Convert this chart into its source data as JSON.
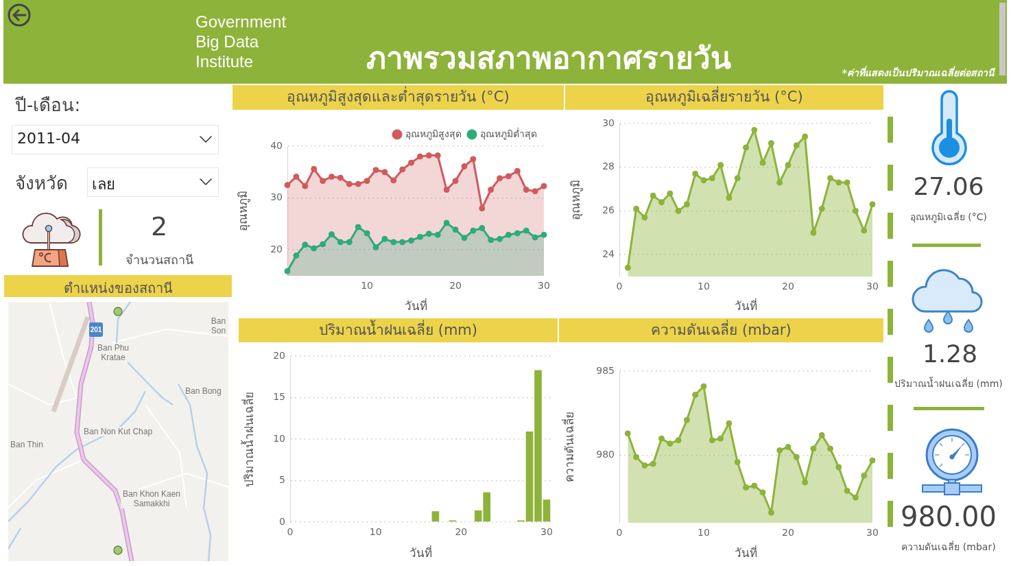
{
  "chart_data": [
    {
      "type": "other",
      "title": "ภาพรวมสภาพอากาศรายวัน",
      "annotations": [
        "Government Big Data Institute",
        "*ค่าที่แสดงเป็นปริมาณเฉลี่ยต่อสถานี"
      ]
    },
    {
      "type": "other",
      "annotations": [
        "ปี-เดือน:",
        "2011-04",
        "จังหวัด",
        "เลย",
        "2",
        "จำนวนสถานี"
      ]
    },
    {
      "type": "other",
      "title": "ตำแหน่งของสถานี",
      "annotations": [
        "201",
        "Ban Phu Kratae",
        "Ban Son",
        "Ban Bong",
        "Ban Non Kut Chap",
        "Ban Thin",
        "Ban Khon Kaen Samakkhi"
      ]
    },
    {
      "type": "area",
      "title": "อุณหภูมิสูงสุดและต่ำสุดรายวัน (°C)",
      "xlabel": "วันที่",
      "ylabel": "อุณหภูมิ",
      "x": [
        1,
        2,
        3,
        4,
        5,
        6,
        7,
        8,
        9,
        10,
        11,
        12,
        13,
        14,
        15,
        16,
        17,
        18,
        19,
        20,
        21,
        22,
        23,
        24,
        25,
        26,
        27,
        28,
        29,
        30
      ],
      "series": [
        {
          "name": "อุณหภูมิสูงสุด",
          "color": "#d05a5c",
          "values": [
            32.5,
            34.1,
            32.3,
            35.6,
            33.3,
            34.1,
            33.9,
            32.7,
            32.7,
            33.3,
            35.4,
            35.0,
            33.4,
            35.5,
            36.8,
            38.0,
            38.2,
            38.2,
            31.6,
            33.3,
            36.1,
            37.5,
            28.0,
            31.6,
            33.8,
            34.2,
            35.2,
            31.6,
            31.3,
            32.3
          ]
        },
        {
          "name": "อุณหภูมิต่ำสุด",
          "color": "#2dab7b",
          "values": [
            15.9,
            18.9,
            21.0,
            20.3,
            21.1,
            23.0,
            21.5,
            21.5,
            24.4,
            23.2,
            20.5,
            22.1,
            21.5,
            21.5,
            21.8,
            22.5,
            23.1,
            22.9,
            25.2,
            23.9,
            22.3,
            23.7,
            24.2,
            21.9,
            22.1,
            22.9,
            23.2,
            23.7,
            22.4,
            22.9
          ]
        }
      ],
      "xlim": [
        1,
        30
      ],
      "xticks": [
        10,
        20,
        30
      ],
      "ylim": [
        15,
        40
      ],
      "yticks": [
        20,
        30,
        40
      ],
      "grid": "y",
      "legend": "top right",
      "marker": "circle"
    },
    {
      "type": "area",
      "title": "อุณหภูมิเฉลี่ยรายวัน (°C)",
      "xlabel": "วันที่",
      "ylabel": "อุณหภูมิ",
      "x": [
        1,
        2,
        3,
        4,
        5,
        6,
        7,
        8,
        9,
        10,
        11,
        12,
        13,
        14,
        15,
        16,
        17,
        18,
        19,
        20,
        21,
        22,
        23,
        24,
        25,
        26,
        27,
        28,
        29,
        30
      ],
      "series": [
        {
          "color": "#8db33a",
          "values": [
            23.4,
            26.1,
            25.7,
            26.7,
            26.4,
            26.8,
            26.0,
            26.3,
            27.7,
            27.4,
            27.5,
            28.1,
            26.6,
            27.5,
            28.9,
            29.7,
            28.2,
            29.1,
            27.3,
            28.1,
            29.0,
            29.4,
            25.0,
            26.1,
            27.5,
            27.3,
            27.3,
            26.0,
            25.1,
            26.3
          ]
        }
      ],
      "xlim": [
        0,
        30
      ],
      "xticks": [
        0,
        10,
        20,
        30
      ],
      "ylim": [
        23,
        30
      ],
      "yticks": [
        24,
        26,
        28,
        30
      ],
      "grid": "y",
      "marker": "circle"
    },
    {
      "type": "bar",
      "title": "ปริมาณน้ำฝนเฉลี่ย (mm)",
      "xlabel": "วันที่",
      "ylabel": "ปริมาณน้ำฝนเฉลี่ย",
      "x": [
        17,
        19,
        22,
        23,
        27,
        28,
        29,
        30
      ],
      "series": [
        {
          "color": "#8db33a",
          "values": [
            1.3,
            0.2,
            1.4,
            3.6,
            0.2,
            10.9,
            18.3,
            2.7
          ]
        }
      ],
      "xlim": [
        0,
        30.5
      ],
      "xticks": [
        0,
        10,
        20,
        30
      ],
      "ylim": [
        0,
        20
      ],
      "yticks": [
        0,
        5,
        10,
        15,
        20
      ],
      "grid": "y"
    },
    {
      "type": "area",
      "title": "ความดันเฉลี่ย (mbar)",
      "xlabel": "วันที่",
      "ylabel": "ความดันเฉลี่ย",
      "x": [
        1,
        2,
        3,
        4,
        5,
        6,
        7,
        8,
        9,
        10,
        11,
        12,
        13,
        14,
        15,
        16,
        17,
        18,
        19,
        20,
        21,
        22,
        23,
        24,
        25,
        26,
        27,
        28,
        29,
        30
      ],
      "series": [
        {
          "color": "#8db33a",
          "values": [
            981.3,
            979.9,
            979.4,
            979.5,
            981.0,
            980.7,
            980.9,
            982.1,
            983.6,
            984.1,
            980.9,
            981.0,
            981.9,
            979.6,
            978.1,
            978.2,
            977.8,
            976.6,
            980.3,
            980.5,
            979.9,
            978.4,
            980.4,
            981.2,
            980.4,
            979.3,
            977.9,
            977.5,
            978.8,
            979.7
          ]
        }
      ],
      "xlim": [
        0,
        30
      ],
      "xticks": [
        0,
        10,
        20,
        30
      ],
      "ylim": [
        976,
        985
      ],
      "yticks": [
        980,
        985
      ],
      "grid": "y",
      "marker": "circle"
    },
    {
      "type": "other",
      "annotations": [
        "27.06",
        "อุณหภูมิเฉลี่ย (°C)",
        "1.28",
        "ปริมาณน้ำฝนเฉลี่ย (mm)",
        "980.00",
        "ความดันเฉลี่ย (mbar)"
      ]
    }
  ]
}
